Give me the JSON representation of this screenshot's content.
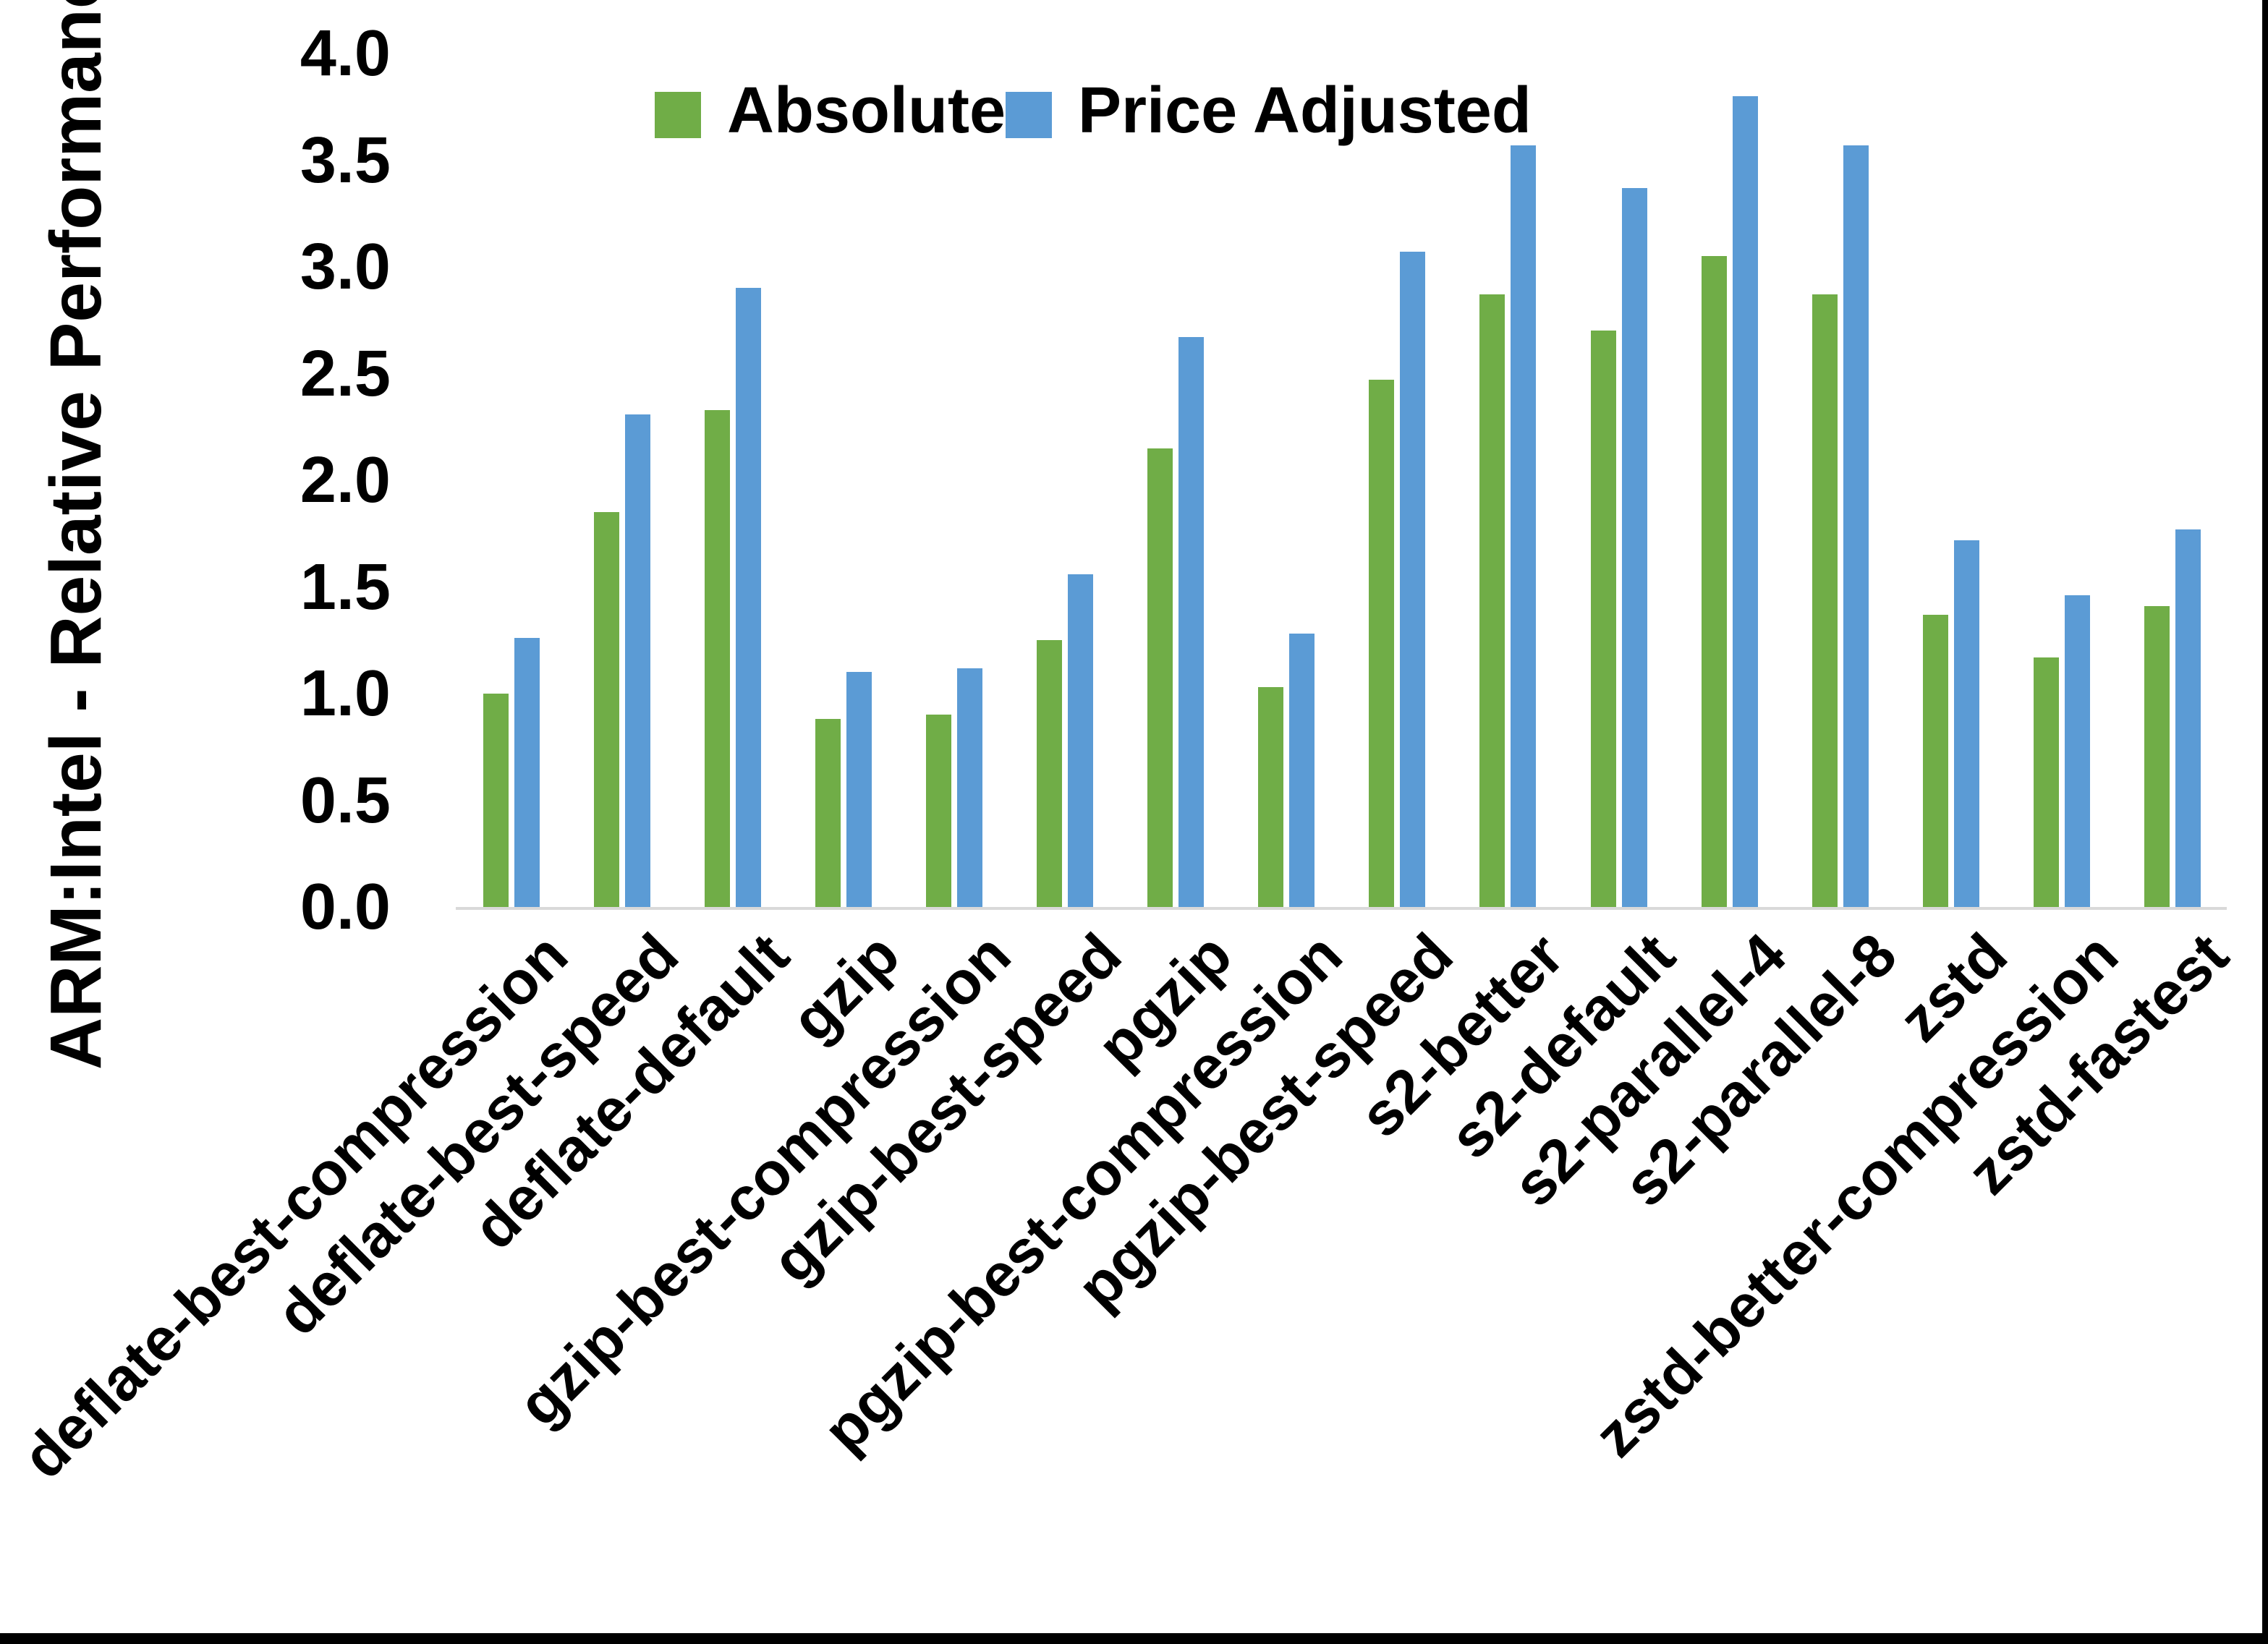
{
  "chart_data": {
    "type": "bar",
    "title": "",
    "xlabel": "",
    "ylabel": "ARM:Intel - Relative Performance",
    "ylim": [
      0.0,
      4.0
    ],
    "ytick_step": 0.5,
    "yticks": [
      "4.0",
      "3.5",
      "3.0",
      "2.5",
      "2.0",
      "1.5",
      "1.0",
      "0.5",
      "0.0"
    ],
    "grid": false,
    "legend_position": "top-center",
    "categories": [
      "deflate-best-compression",
      "deflate-best-speed",
      "deflate-default",
      "gzip",
      "gzip-best-compression",
      "gzip-best-speed",
      "pgzip",
      "pgzip-best-compression",
      "pgzip-best-speed",
      "s2-better",
      "s2-default",
      "s2-parallel-4",
      "s2-parallel-8",
      "zstd",
      "zstd-better-compression",
      "zstd-fastest"
    ],
    "series": [
      {
        "name": "Absolute",
        "color": "#70AD47",
        "values": [
          1.0,
          1.85,
          2.33,
          0.88,
          0.9,
          1.25,
          2.15,
          1.03,
          2.47,
          2.87,
          2.7,
          3.05,
          2.87,
          1.37,
          1.17,
          1.41
        ]
      },
      {
        "name": "Price Adjusted",
        "color": "#5B9BD5",
        "values": [
          1.26,
          2.31,
          2.9,
          1.1,
          1.12,
          1.56,
          2.67,
          1.28,
          3.07,
          3.57,
          3.37,
          3.8,
          3.57,
          1.72,
          1.46,
          1.77
        ]
      }
    ],
    "axis_line_color": "#d9d9d9",
    "frame_edge_color": "#000000"
  }
}
